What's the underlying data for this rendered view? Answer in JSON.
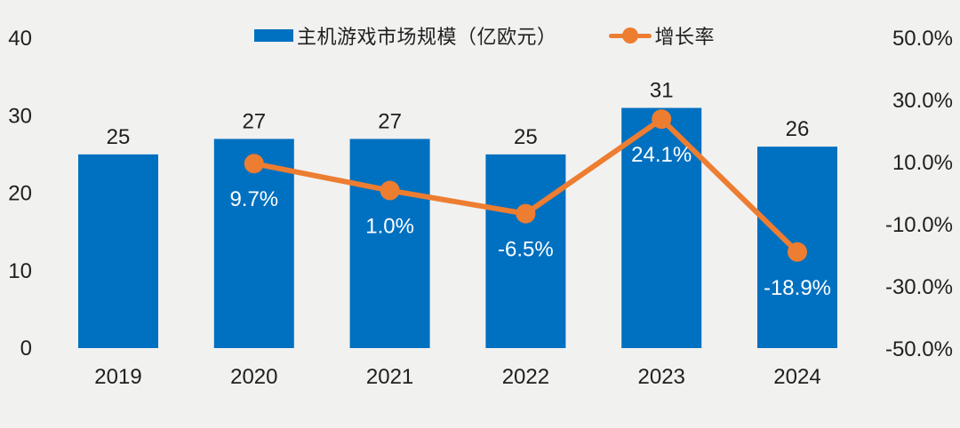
{
  "chart_data": {
    "type": "combo-bar-line",
    "title": "",
    "categories": [
      "2019",
      "2020",
      "2021",
      "2022",
      "2023",
      "2024"
    ],
    "series": [
      {
        "name": "主机游戏市场规模（亿欧元）",
        "type": "bar",
        "color": "#0070C0",
        "axis": "left",
        "values": [
          25,
          27,
          27,
          25,
          31,
          26
        ],
        "labels": [
          "25",
          "27",
          "27",
          "25",
          "31",
          "26"
        ]
      },
      {
        "name": "增长率",
        "type": "line",
        "color": "#ED7D31",
        "axis": "right",
        "values": [
          null,
          9.7,
          1.0,
          -6.5,
          24.1,
          -18.9
        ],
        "labels": [
          null,
          "9.7%",
          "1.0%",
          "-6.5%",
          "24.1%",
          "-18.9%"
        ]
      }
    ],
    "left_axis": {
      "min": 0,
      "max": 40,
      "ticks": [
        "40",
        "30",
        "20",
        "10",
        "0"
      ]
    },
    "right_axis": {
      "min": -50,
      "max": 50,
      "ticks": [
        "50.0%",
        "30.0%",
        "10.0%",
        "-10.0%",
        "-30.0%",
        "-50.0%"
      ]
    },
    "legend_position": "top",
    "grid": false,
    "background_color": "#F1F1F0",
    "bar_label_color": "#1f1f1f",
    "line_label_color": "#ffffff",
    "axis_label_color": "#1f1f1f"
  },
  "legend": {
    "bar_label": "主机游戏市场规模（亿欧元）",
    "line_label": "增长率"
  }
}
